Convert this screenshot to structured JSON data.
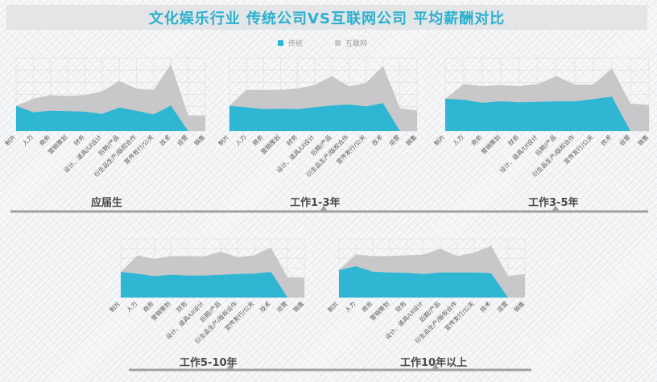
{
  "title": "文化娱乐行业   传统公司VS互联网公司   平均薪酬对比",
  "legend": {
    "traditional": "传统",
    "internet": "互联网"
  },
  "colors": {
    "traditional": "#2fb6d3",
    "internet": "#c8c8ca",
    "title": "#2ab1cf",
    "timeline": "#a0a0a0",
    "grid": "#dddddd"
  },
  "periods": [
    "应届生",
    "工作1-3年",
    "工作3-5年",
    "工作5-10年",
    "工作10年以上"
  ],
  "chart_data": [
    {
      "type": "area",
      "title": "应届生",
      "categories": [
        "制片",
        "人力",
        "商务",
        "营销策划",
        "财务",
        "设计、道具/UI设计",
        "后期/产品",
        "衍生品生产/版权合作",
        "宣传发行/公关",
        "技术",
        "运营",
        "销售"
      ],
      "series": [
        {
          "name": "传统",
          "values": [
            4.8,
            3.6,
            3.9,
            3.8,
            3.7,
            3.3,
            4.5,
            3.9,
            3.2,
            4.9,
            0,
            0
          ]
        },
        {
          "name": "互联网",
          "values": [
            4.8,
            6.2,
            6.9,
            6.7,
            6.9,
            7.6,
            9.6,
            8.1,
            7.9,
            12.8,
            3.0,
            3.0
          ]
        }
      ],
      "ylim": [
        0,
        14
      ],
      "grid": true
    },
    {
      "type": "area",
      "title": "工作1-3年",
      "categories": [
        "制片",
        "人力",
        "商务",
        "营销策划",
        "财务",
        "设计、道具/UI设计",
        "后期/产品",
        "衍生品生产/版权合作",
        "宣传发行/公关",
        "技术",
        "运营",
        "销售"
      ],
      "series": [
        {
          "name": "传统",
          "values": [
            5.5,
            5.2,
            4.8,
            4.9,
            4.8,
            5.2,
            5.6,
            5.8,
            5.4,
            6.1,
            0,
            0
          ]
        },
        {
          "name": "互联网",
          "values": [
            5.5,
            9.0,
            9.0,
            9.0,
            9.3,
            10.1,
            12.0,
            9.8,
            10.5,
            14.3,
            5.0,
            4.5
          ]
        }
      ],
      "ylim": [
        0,
        16
      ],
      "grid": true
    },
    {
      "type": "area",
      "title": "工作3-5年",
      "categories": [
        "制片",
        "人力",
        "商务",
        "营销策划",
        "财务",
        "设计、道具/UI设计",
        "后期/产品",
        "衍生品生产/版权合作",
        "宣传发行/公关",
        "技术",
        "运营",
        "销售"
      ],
      "series": [
        {
          "name": "传统",
          "values": [
            6.2,
            6.0,
            5.4,
            5.7,
            5.5,
            5.6,
            5.7,
            5.7,
            6.1,
            6.6,
            0,
            0
          ]
        },
        {
          "name": "互联网",
          "values": [
            6.2,
            9.0,
            8.6,
            8.8,
            8.6,
            9.0,
            10.5,
            8.9,
            8.9,
            12.0,
            5.3,
            5.0
          ]
        }
      ],
      "ylim": [
        0,
        14
      ],
      "grid": true
    },
    {
      "type": "area",
      "title": "工作5-10年",
      "categories": [
        "制片",
        "人力",
        "商务",
        "营销策划",
        "财务",
        "设计、道具/UI设计",
        "后期/产品",
        "衍生品生产/版权合作",
        "宣传发行/公关",
        "技术",
        "运营",
        "销售"
      ],
      "series": [
        {
          "name": "传统",
          "values": [
            7.0,
            6.5,
            5.8,
            6.2,
            6.0,
            6.0,
            6.2,
            6.4,
            6.5,
            7.0,
            0,
            0
          ]
        },
        {
          "name": "互联网",
          "values": [
            7.0,
            11.5,
            10.5,
            11.3,
            11.3,
            11.2,
            12.5,
            11.0,
            11.5,
            13.6,
            5.5,
            5.5
          ]
        }
      ],
      "ylim": [
        0,
        16
      ],
      "grid": true
    },
    {
      "type": "area",
      "title": "工作10年以上",
      "categories": [
        "制片",
        "人力",
        "商务",
        "营销策划",
        "财务",
        "设计、道具/UI设计",
        "后期/产品",
        "衍生品生产/版权合作",
        "宣传发行/公关",
        "技术",
        "运营",
        "销售"
      ],
      "series": [
        {
          "name": "传统",
          "values": [
            7.0,
            8.0,
            6.6,
            6.4,
            6.3,
            6.0,
            6.4,
            6.4,
            6.4,
            6.2,
            0,
            0
          ]
        },
        {
          "name": "互联网",
          "values": [
            7.0,
            11.0,
            10.6,
            10.6,
            10.8,
            11.0,
            12.5,
            10.6,
            11.5,
            13.2,
            5.5,
            6.0
          ]
        }
      ],
      "ylim": [
        0,
        15
      ],
      "grid": true
    }
  ]
}
